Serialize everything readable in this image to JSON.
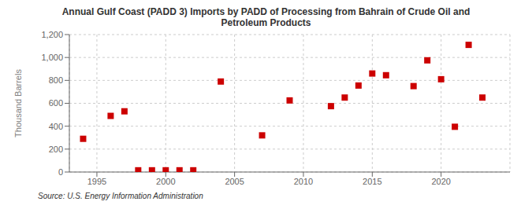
{
  "chart_data": {
    "type": "scatter",
    "title": "Annual Gulf Coast (PADD 3) Imports by PADD of Processing from Bahrain of Crude Oil and\nPetroleum Products",
    "ylabel": "Thousand Barrels",
    "source": "Source: U.S. Energy Information Administration",
    "x": [
      1994,
      1996,
      1997,
      1998,
      1999,
      2000,
      2001,
      2002,
      2004,
      2007,
      2009,
      2012,
      2013,
      2014,
      2015,
      2016,
      2018,
      2019,
      2020,
      2021,
      2022,
      2023
    ],
    "values": [
      290,
      490,
      530,
      15,
      15,
      15,
      15,
      15,
      790,
      320,
      625,
      575,
      650,
      755,
      860,
      845,
      750,
      975,
      810,
      395,
      1110,
      650
    ],
    "color": "#cc0000",
    "marker": "square",
    "xlim": [
      1993,
      2025
    ],
    "xticks": [
      1995,
      2000,
      2005,
      2010,
      2015,
      2020
    ],
    "ylim": [
      0,
      1200
    ],
    "yticks": [
      0,
      200,
      400,
      600,
      800,
      {
        "value": 1000,
        "label": "1,000"
      },
      {
        "value": 1200,
        "label": "1,200"
      }
    ],
    "grid": true
  }
}
